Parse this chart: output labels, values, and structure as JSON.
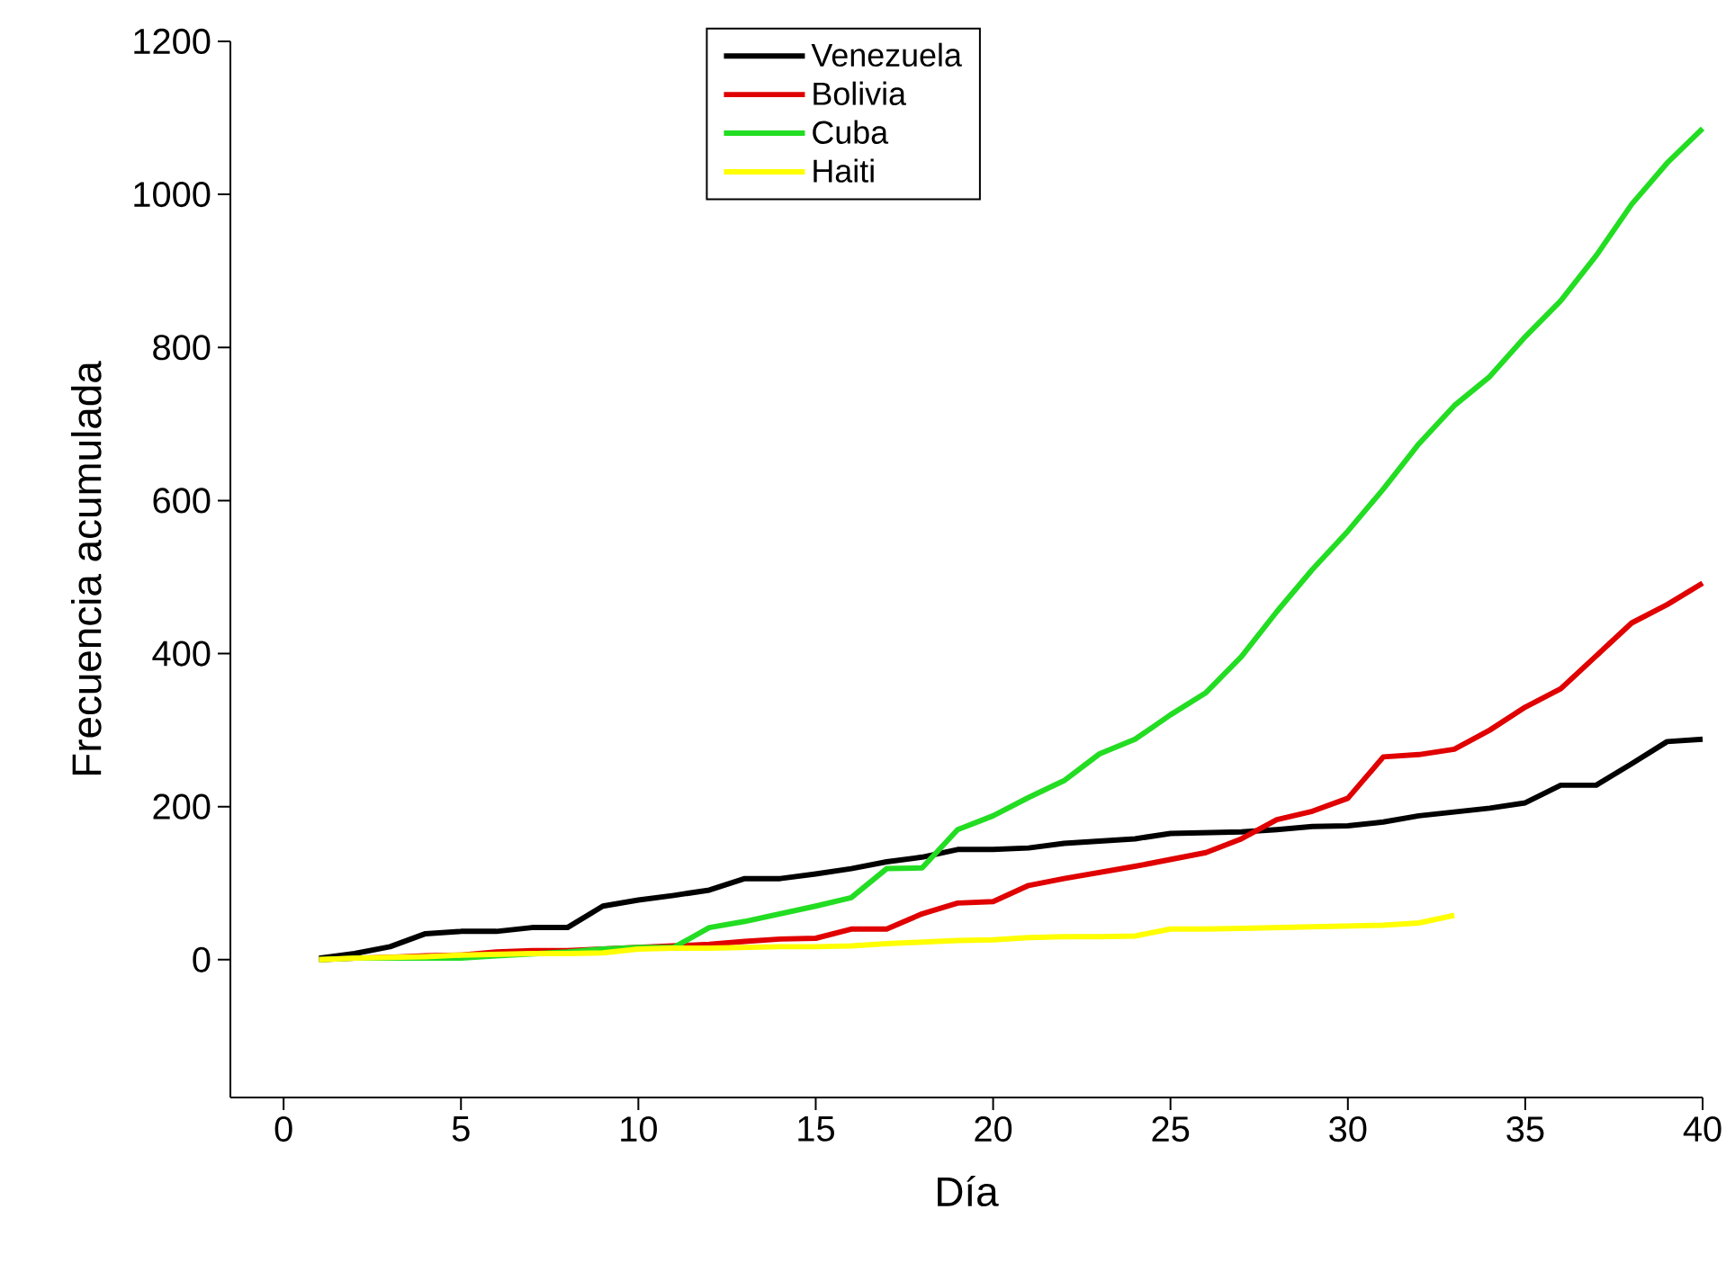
{
  "chart_data": {
    "type": "line",
    "xlabel": "Día",
    "ylabel": "Frecuencia acumulada",
    "xlim": [
      -1.5,
      40
    ],
    "xticks": [
      0,
      5,
      10,
      15,
      20,
      25,
      30,
      35,
      40
    ],
    "ylim": [
      -180,
      1200
    ],
    "yticks": [
      0,
      200,
      400,
      600,
      800,
      1000,
      1200
    ],
    "grid": false,
    "legend": "top",
    "marker": "none",
    "line_style": "solid",
    "x": [
      1,
      2,
      3,
      4,
      5,
      6,
      7,
      8,
      9,
      10,
      11,
      12,
      13,
      14,
      15,
      16,
      17,
      18,
      19,
      20,
      21,
      22,
      23,
      24,
      25,
      26,
      27,
      28,
      29,
      30,
      31,
      32,
      33,
      34,
      35,
      36,
      37,
      38,
      39,
      40
    ],
    "series": [
      {
        "name": "Venezuela",
        "color": "#000000",
        "values": [
          2,
          8,
          17,
          34,
          37,
          37,
          42,
          42,
          70,
          78,
          84,
          91,
          106,
          106,
          112,
          119,
          128,
          134,
          144,
          144,
          146,
          152,
          155,
          158,
          165,
          166,
          167,
          170,
          174,
          175,
          180,
          188,
          193,
          198,
          205,
          228,
          228,
          256,
          285,
          288
        ]
      },
      {
        "name": "Bolivia",
        "color": "#e00000",
        "values": [
          0,
          2,
          3,
          5,
          6,
          10,
          12,
          12,
          null,
          null,
          null,
          20,
          24,
          27,
          28,
          40,
          40,
          60,
          74,
          76,
          97,
          106,
          114,
          122,
          131,
          140,
          158,
          183,
          194,
          211,
          265,
          268,
          275,
          300,
          330,
          354,
          397,
          440,
          464,
          492
        ]
      },
      {
        "name": "Cuba",
        "color": "#22dd22",
        "values": [
          0,
          2,
          2,
          2,
          2,
          5,
          null,
          10,
          14,
          16,
          16,
          42,
          50,
          60,
          70,
          81,
          119,
          120,
          170,
          188,
          212,
          234,
          269,
          288,
          320,
          349,
          396,
          455,
          510,
          560,
          615,
          674,
          724,
          762,
          814,
          861,
          920,
          987,
          1041,
          1086
        ]
      },
      {
        "name": "Haiti",
        "color": "#ffff00",
        "x": [
          1,
          2,
          3,
          4,
          5,
          6,
          7,
          8,
          9,
          10,
          11,
          12,
          13,
          14,
          15,
          16,
          17,
          18,
          19,
          20,
          21,
          22,
          23,
          24,
          25,
          26,
          27,
          28,
          29,
          30,
          31,
          32,
          33
        ],
        "values": [
          0,
          2,
          3,
          4,
          6,
          7,
          8,
          8,
          9,
          14,
          15,
          15,
          16,
          17,
          17,
          18,
          21,
          23,
          25,
          26,
          29,
          30,
          30,
          31,
          40,
          40,
          41,
          42,
          43,
          44,
          45,
          48,
          58
        ]
      }
    ]
  }
}
